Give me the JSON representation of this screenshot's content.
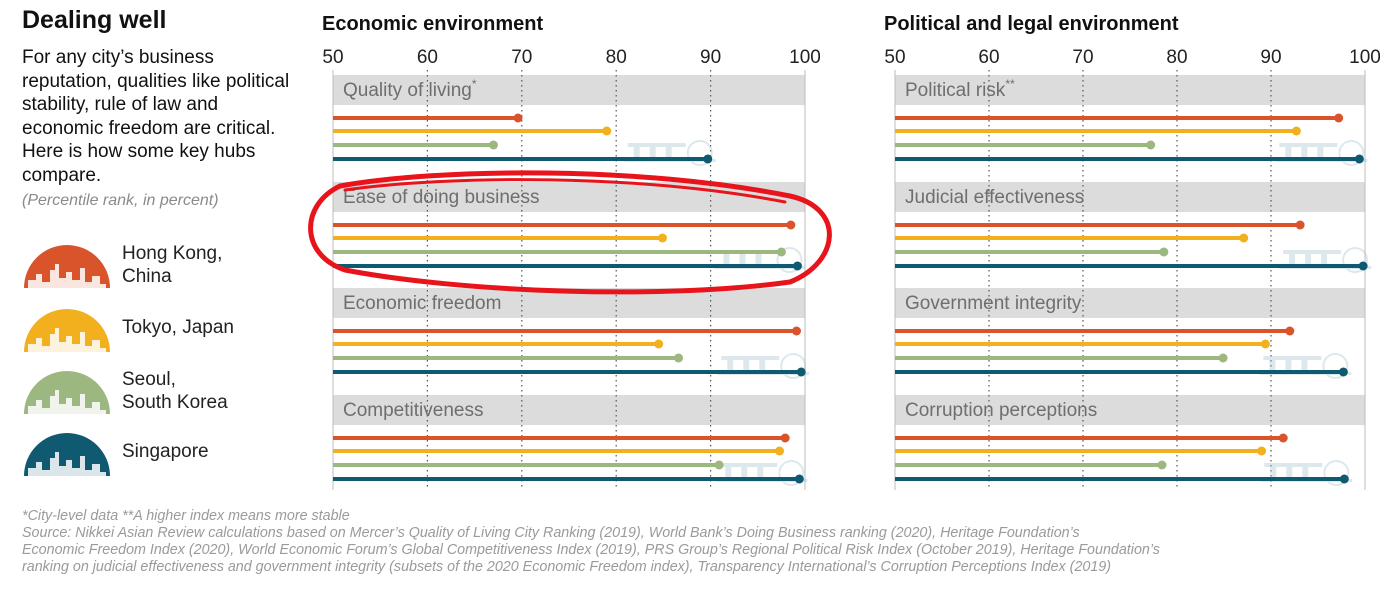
{
  "title": "Dealing well",
  "intro": "For any city’s business reputation, qualities like political stability, rule of law and economic freedom are critical. Here is how some key hubs compare.",
  "unit_note": "(Percentile rank, in percent)",
  "cities": [
    {
      "key": "hk",
      "label_lines": [
        "Hong Kong,",
        "China"
      ],
      "color": "#d9542a",
      "icon": "hong-kong-skyline-icon"
    },
    {
      "key": "tokyo",
      "label_lines": [
        "Tokyo, Japan"
      ],
      "color": "#f2b01e",
      "icon": "tokyo-skyline-icon"
    },
    {
      "key": "seoul",
      "label_lines": [
        "Seoul,",
        "South Korea"
      ],
      "color": "#9cb77f",
      "icon": "seoul-skyline-icon"
    },
    {
      "key": "singapore",
      "label_lines": [
        "Singapore"
      ],
      "color": "#0f5a70",
      "icon": "singapore-skyline-icon"
    }
  ],
  "chart_data": [
    {
      "type": "bar",
      "title": "Economic environment",
      "xlim": [
        50,
        100
      ],
      "ticks": [
        "50",
        "60",
        "70",
        "80",
        "90",
        "100"
      ],
      "grid": true,
      "categories": [
        "Quality of living",
        "Ease of doing business",
        "Economic freedom",
        "Competitiveness"
      ],
      "category_marks": [
        "*",
        "",
        "",
        ""
      ],
      "series": [
        {
          "name": "Hong Kong, China",
          "values": [
            69.6,
            98.5,
            99.1,
            97.9
          ]
        },
        {
          "name": "Tokyo, Japan",
          "values": [
            79.0,
            84.9,
            84.5,
            97.3
          ]
        },
        {
          "name": "Seoul, South Korea",
          "values": [
            67.0,
            97.5,
            86.6,
            90.9
          ]
        },
        {
          "name": "Singapore",
          "values": [
            89.7,
            99.2,
            99.6,
            99.4
          ]
        }
      ]
    },
    {
      "type": "bar",
      "title": "Political and legal environment",
      "xlim": [
        50,
        100
      ],
      "ticks": [
        "50",
        "60",
        "70",
        "80",
        "90",
        "100"
      ],
      "grid": true,
      "categories": [
        "Political risk",
        "Judicial effectiveness",
        "Government integrity",
        "Corruption perceptions"
      ],
      "category_marks": [
        "**",
        "",
        "",
        ""
      ],
      "series": [
        {
          "name": "Hong Kong, China",
          "values": [
            97.2,
            93.1,
            92.0,
            91.3
          ]
        },
        {
          "name": "Tokyo, Japan",
          "values": [
            92.7,
            87.1,
            89.4,
            89.0
          ]
        },
        {
          "name": "Seoul, South Korea",
          "values": [
            77.2,
            78.6,
            84.9,
            78.4
          ]
        },
        {
          "name": "Singapore",
          "values": [
            99.4,
            99.8,
            97.7,
            97.8
          ]
        }
      ]
    }
  ],
  "footer": [
    "*City-level data  **A higher index means more stable",
    "Source: Nikkei Asian Review calculations based on Mercer’s Quality of Living City Ranking (2019), World Bank’s Doing Business ranking (2020), Heritage Foundation’s",
    "Economic Freedom Index (2020), World Economic Forum’s Global Competitiveness Index (2019), PRS Group’s Regional Political Risk Index (October 2019), Heritage Foundation’s",
    "ranking on judicial effectiveness and government integrity (subsets of the 2020 Economic Freedom index), Transparency International’s Corruption Perceptions Index (2019)"
  ],
  "annotation": {
    "color": "#e8141b",
    "target": "Ease of doing business"
  }
}
